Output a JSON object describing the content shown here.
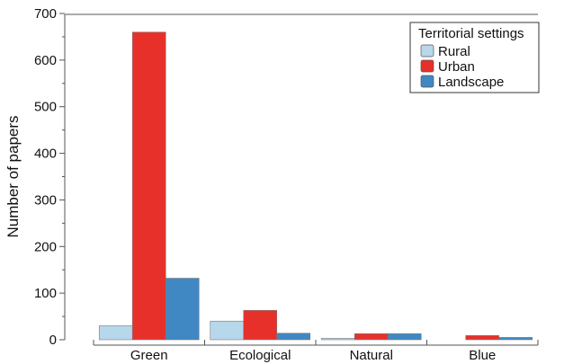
{
  "chart_data": {
    "type": "bar",
    "title": "",
    "xlabel": "",
    "ylabel": "Number of papers",
    "ylim": [
      0,
      700
    ],
    "yticks": [
      0,
      100,
      200,
      300,
      400,
      500,
      600,
      700
    ],
    "categories": [
      "Green",
      "Ecological",
      "Natural",
      "Blue"
    ],
    "series": [
      {
        "name": "Rural",
        "color": "#b7d7ea",
        "values": [
          30,
          40,
          3,
          0
        ]
      },
      {
        "name": "Urban",
        "color": "#e8302a",
        "values": [
          660,
          63,
          13,
          9
        ]
      },
      {
        "name": "Landscape",
        "color": "#4088c3",
        "values": [
          132,
          14,
          13,
          5
        ]
      }
    ],
    "legend": {
      "title": "Territorial settings",
      "position": "top-right"
    },
    "grid": false
  }
}
